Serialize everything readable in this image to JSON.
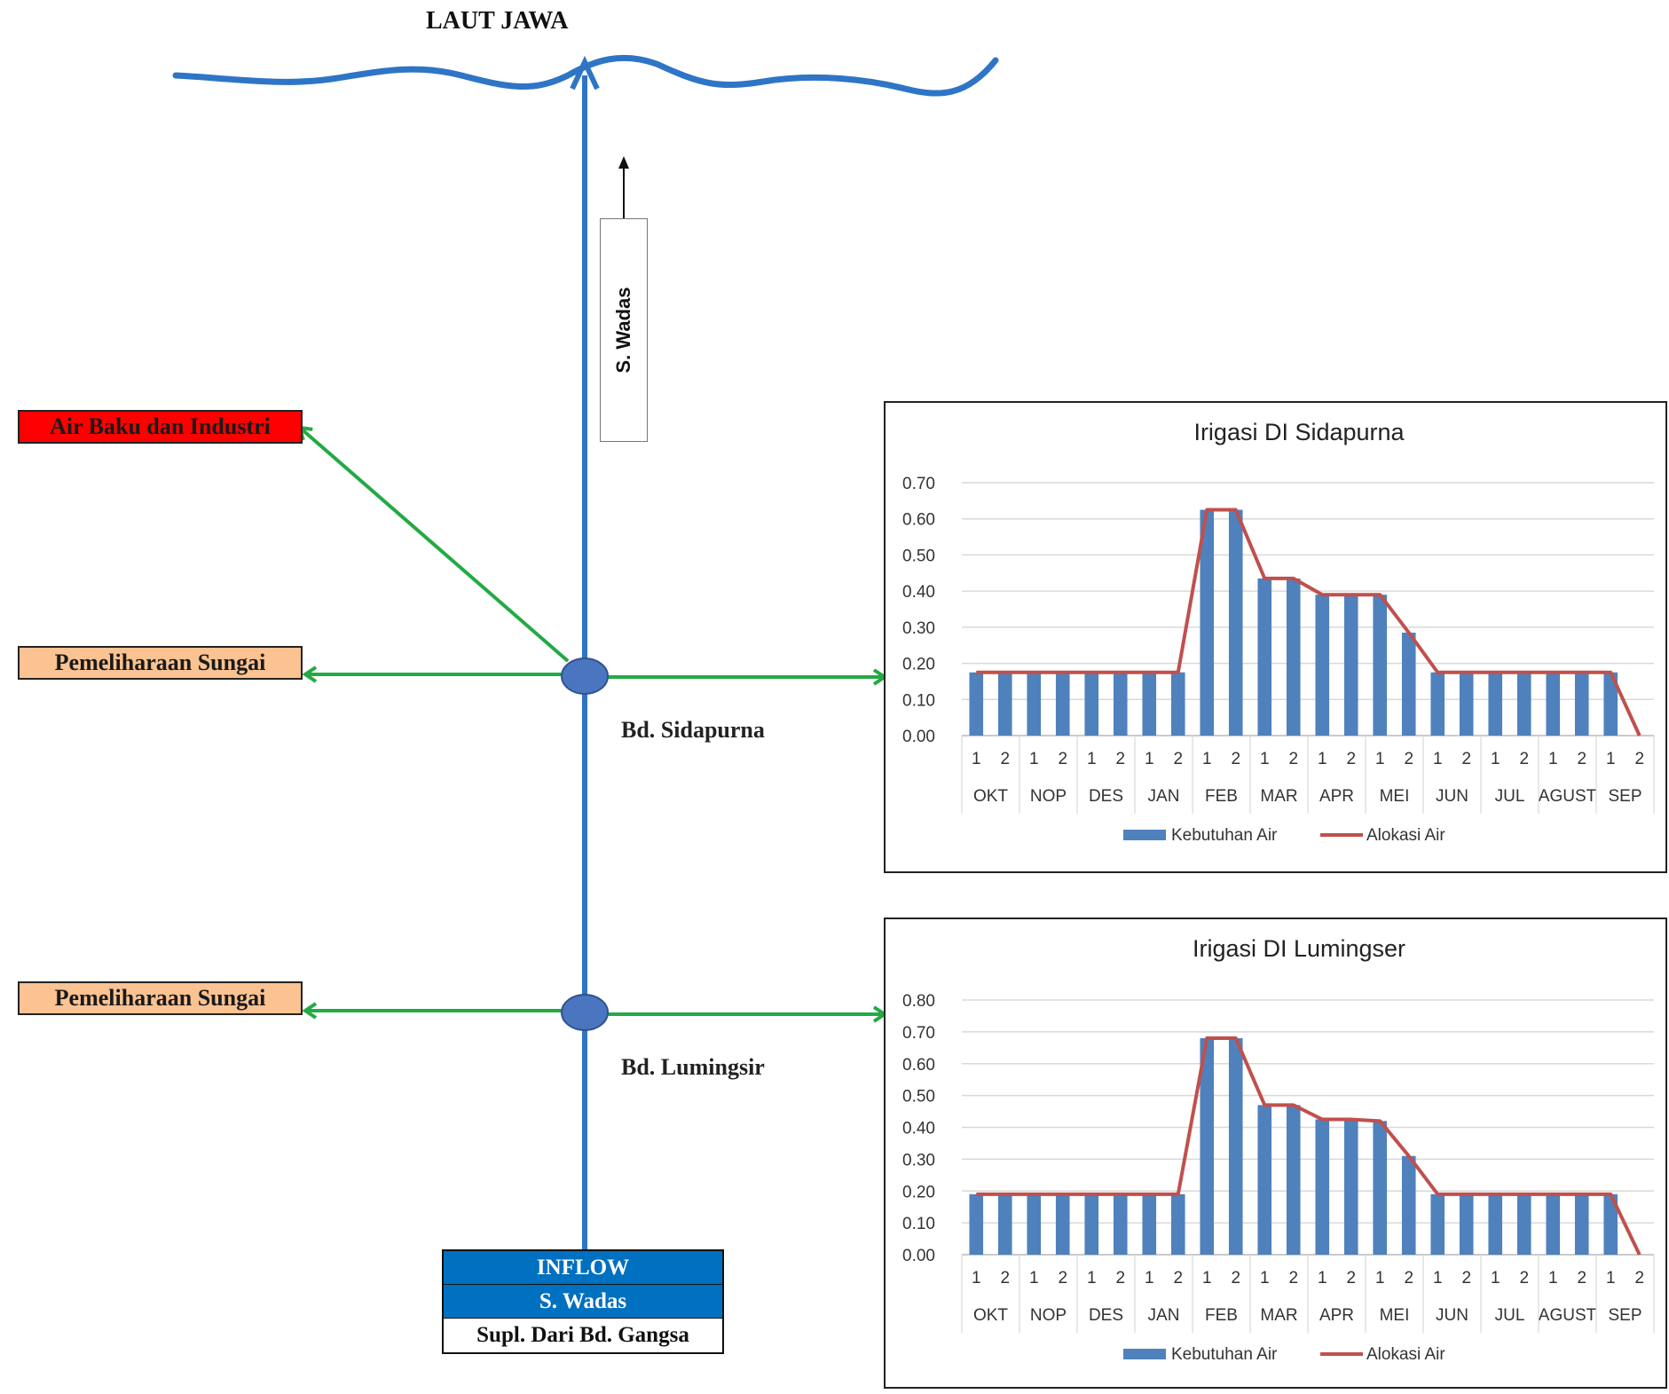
{
  "sea": {
    "label": "LAUT JAWA"
  },
  "river": {
    "label": "S. Wadas"
  },
  "demands": {
    "air_baku": "Air Baku dan Industri",
    "pemeliharaan_1": "Pemeliharaan Sungai",
    "pemeliharaan_2": "Pemeliharaan Sungai"
  },
  "nodes": {
    "sidapurna": "Bd. Sidapurna",
    "lumingsir": "Bd. Lumingsir"
  },
  "inflow": {
    "title": "INFLOW",
    "river": "S. Wadas",
    "supply": "Supl. Dari Bd. Gangsa"
  },
  "colors": {
    "river": "#2e75c6",
    "diversion": "#22aa44",
    "node": "#4a76c0",
    "bar": "#4f81bd",
    "line": "#c0504d"
  },
  "chart_data": [
    {
      "type": "bar",
      "title": "Irigasi DI Sidapurna",
      "categories_periods": [
        "1",
        "2",
        "1",
        "2",
        "1",
        "2",
        "1",
        "2",
        "1",
        "2",
        "1",
        "2",
        "1",
        "2",
        "1",
        "2",
        "1",
        "2",
        "1",
        "2",
        "1",
        "2",
        "1",
        "2"
      ],
      "months": [
        "OKT",
        "NOP",
        "DES",
        "JAN",
        "FEB",
        "MAR",
        "APR",
        "MEI",
        "JUN",
        "JUL",
        "AGUST",
        "SEP"
      ],
      "ylim": [
        0,
        0.7
      ],
      "yticks": [
        "0.00",
        "0.10",
        "0.20",
        "0.30",
        "0.40",
        "0.50",
        "0.60",
        "0.70"
      ],
      "grid": true,
      "legend": "bottom",
      "series": [
        {
          "name": "Kebutuhan Air",
          "kind": "bar",
          "values": [
            0.175,
            0.175,
            0.175,
            0.175,
            0.175,
            0.175,
            0.175,
            0.175,
            0.625,
            0.625,
            0.435,
            0.435,
            0.39,
            0.39,
            0.39,
            0.285,
            0.175,
            0.175,
            0.175,
            0.175,
            0.175,
            0.175,
            0.175,
            0
          ]
        },
        {
          "name": "Alokasi Air",
          "kind": "line",
          "values": [
            0.175,
            0.175,
            0.175,
            0.175,
            0.175,
            0.175,
            0.175,
            0.175,
            0.625,
            0.625,
            0.435,
            0.435,
            0.39,
            0.39,
            0.39,
            0.285,
            0.175,
            0.175,
            0.175,
            0.175,
            0.175,
            0.175,
            0.175,
            0
          ]
        }
      ]
    },
    {
      "type": "bar",
      "title": "Irigasi DI Lumingser",
      "categories_periods": [
        "1",
        "2",
        "1",
        "2",
        "1",
        "2",
        "1",
        "2",
        "1",
        "2",
        "1",
        "2",
        "1",
        "2",
        "1",
        "2",
        "1",
        "2",
        "1",
        "2",
        "1",
        "2",
        "1",
        "2"
      ],
      "months": [
        "OKT",
        "NOP",
        "DES",
        "JAN",
        "FEB",
        "MAR",
        "APR",
        "MEI",
        "JUN",
        "JUL",
        "AGUST",
        "SEP"
      ],
      "ylim": [
        0,
        0.8
      ],
      "yticks": [
        "0.00",
        "0.10",
        "0.20",
        "0.30",
        "0.40",
        "0.50",
        "0.60",
        "0.70",
        "0.80"
      ],
      "grid": true,
      "legend": "bottom",
      "series": [
        {
          "name": "Kebutuhan Air",
          "kind": "bar",
          "values": [
            0.19,
            0.19,
            0.19,
            0.19,
            0.19,
            0.19,
            0.19,
            0.19,
            0.68,
            0.68,
            0.47,
            0.47,
            0.425,
            0.425,
            0.42,
            0.31,
            0.19,
            0.19,
            0.19,
            0.19,
            0.19,
            0.19,
            0.19,
            0
          ]
        },
        {
          "name": "Alokasi Air",
          "kind": "line",
          "values": [
            0.19,
            0.19,
            0.19,
            0.19,
            0.19,
            0.19,
            0.19,
            0.19,
            0.68,
            0.68,
            0.47,
            0.47,
            0.425,
            0.425,
            0.42,
            0.31,
            0.19,
            0.19,
            0.19,
            0.19,
            0.19,
            0.19,
            0.19,
            0
          ]
        }
      ]
    }
  ]
}
